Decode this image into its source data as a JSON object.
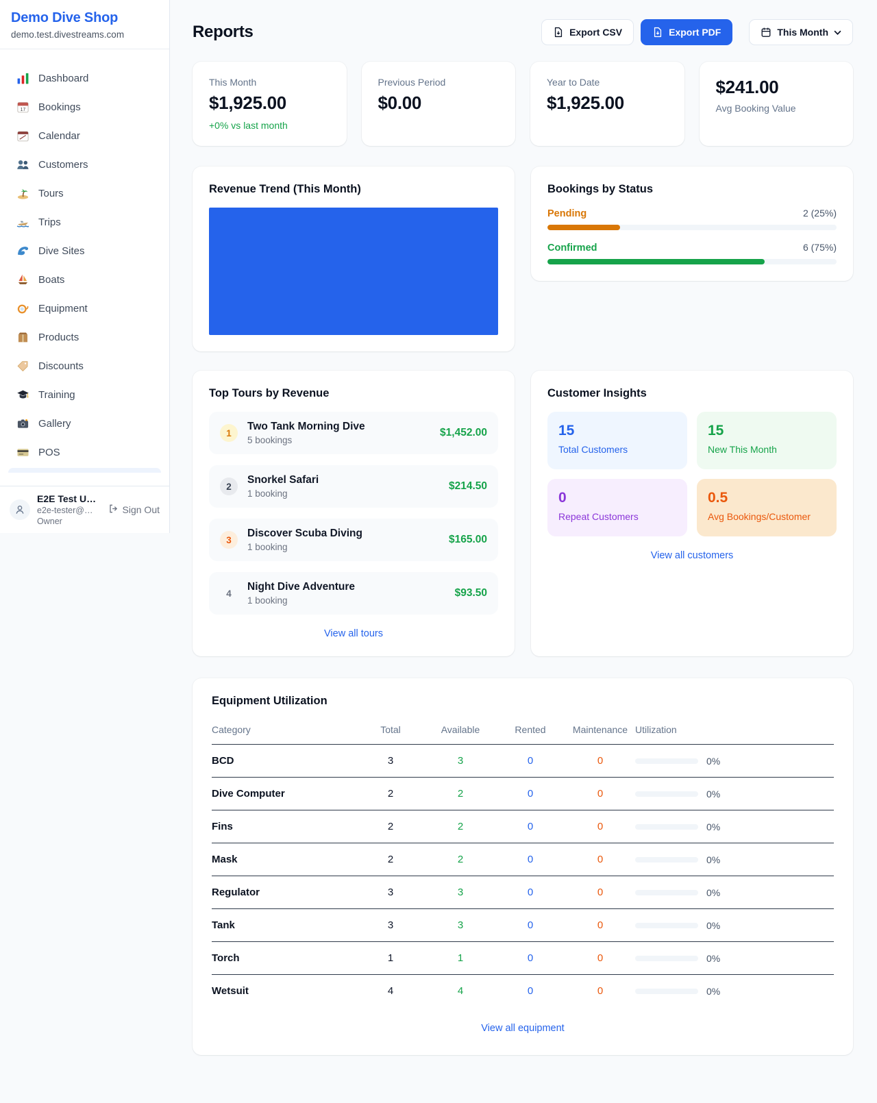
{
  "colors": {
    "accent_blue": "#2563eb",
    "positive_green": "#16a34a",
    "pending_orange": "#d97706",
    "maintenance_orange": "#ea580c",
    "repeat_purple": "#8b36d9",
    "trend_fill": "#2563eb"
  },
  "sidebar": {
    "shop_name": "Demo Dive Shop",
    "shop_domain": "demo.test.divestreams.com",
    "items": [
      {
        "icon": "bar-chart-icon",
        "label": "Dashboard"
      },
      {
        "icon": "calendar-17-icon",
        "label": "Bookings"
      },
      {
        "icon": "calendar-pad-icon",
        "label": "Calendar"
      },
      {
        "icon": "people-icon",
        "label": "Customers"
      },
      {
        "icon": "island-icon",
        "label": "Tours"
      },
      {
        "icon": "speedboat-icon",
        "label": "Trips"
      },
      {
        "icon": "wave-icon",
        "label": "Dive Sites"
      },
      {
        "icon": "sailboat-icon",
        "label": "Boats"
      },
      {
        "icon": "dive-mask-icon",
        "label": "Equipment"
      },
      {
        "icon": "package-icon",
        "label": "Products"
      },
      {
        "icon": "tag-icon",
        "label": "Discounts"
      },
      {
        "icon": "grad-cap-icon",
        "label": "Training"
      },
      {
        "icon": "camera-icon",
        "label": "Gallery"
      },
      {
        "icon": "credit-card-icon",
        "label": "POS"
      }
    ],
    "user": {
      "name": "E2E Test U…",
      "email": "e2e-tester@…",
      "role": "Owner",
      "sign_out_label": "Sign Out"
    }
  },
  "header": {
    "title": "Reports",
    "export_csv_label": "Export CSV",
    "export_pdf_label": "Export PDF",
    "period_label": "This Month"
  },
  "stats": [
    {
      "label": "This Month",
      "value": "$1,925.00",
      "delta": "+0% vs last month"
    },
    {
      "label": "Previous Period",
      "value": "$0.00"
    },
    {
      "label": "Year to Date",
      "value": "$1,925.00"
    },
    {
      "label": "Avg Booking Value",
      "value": "$241.00"
    }
  ],
  "revenue_trend": {
    "title": "Revenue Trend (This Month)"
  },
  "bookings_by_status": {
    "title": "Bookings by Status",
    "rows": [
      {
        "label": "Pending",
        "count": "2 (25%)",
        "pct": 25
      },
      {
        "label": "Confirmed",
        "count": "6 (75%)",
        "pct": 75
      }
    ]
  },
  "top_tours": {
    "title": "Top Tours by Revenue",
    "rows": [
      {
        "rank": "1",
        "name": "Two Tank Morning Dive",
        "bookings": "5 bookings",
        "revenue": "$1,452.00"
      },
      {
        "rank": "2",
        "name": "Snorkel Safari",
        "bookings": "1 booking",
        "revenue": "$214.50"
      },
      {
        "rank": "3",
        "name": "Discover Scuba Diving",
        "bookings": "1 booking",
        "revenue": "$165.00"
      },
      {
        "rank": "4",
        "name": "Night Dive Adventure",
        "bookings": "1 booking",
        "revenue": "$93.50"
      }
    ],
    "view_all_label": "View all tours"
  },
  "customer_insights": {
    "title": "Customer Insights",
    "tiles": [
      {
        "value": "15",
        "label": "Total Customers"
      },
      {
        "value": "15",
        "label": "New This Month"
      },
      {
        "value": "0",
        "label": "Repeat Customers"
      },
      {
        "value": "0.5",
        "label": "Avg Bookings/Customer"
      }
    ],
    "view_all_label": "View all customers"
  },
  "equipment": {
    "title": "Equipment Utilization",
    "columns": [
      "Category",
      "Total",
      "Available",
      "Rented",
      "Maintenance",
      "Utilization"
    ],
    "rows": [
      {
        "category": "BCD",
        "total": "3",
        "available": "3",
        "rented": "0",
        "maintenance": "0",
        "utilization": "0%",
        "utilization_pct": 0
      },
      {
        "category": "Dive Computer",
        "total": "2",
        "available": "2",
        "rented": "0",
        "maintenance": "0",
        "utilization": "0%",
        "utilization_pct": 0
      },
      {
        "category": "Fins",
        "total": "2",
        "available": "2",
        "rented": "0",
        "maintenance": "0",
        "utilization": "0%",
        "utilization_pct": 0
      },
      {
        "category": "Mask",
        "total": "2",
        "available": "2",
        "rented": "0",
        "maintenance": "0",
        "utilization": "0%",
        "utilization_pct": 0
      },
      {
        "category": "Regulator",
        "total": "3",
        "available": "3",
        "rented": "0",
        "maintenance": "0",
        "utilization": "0%",
        "utilization_pct": 0
      },
      {
        "category": "Tank",
        "total": "3",
        "available": "3",
        "rented": "0",
        "maintenance": "0",
        "utilization": "0%",
        "utilization_pct": 0
      },
      {
        "category": "Torch",
        "total": "1",
        "available": "1",
        "rented": "0",
        "maintenance": "0",
        "utilization": "0%",
        "utilization_pct": 0
      },
      {
        "category": "Wetsuit",
        "total": "4",
        "available": "4",
        "rented": "0",
        "maintenance": "0",
        "utilization": "0%",
        "utilization_pct": 0
      }
    ],
    "view_all_label": "View all equipment"
  },
  "chart_data": [
    {
      "type": "area",
      "title": "Revenue Trend (This Month)",
      "note": "rendered as a solid filled rectangle spanning the full plot area",
      "fill_color": "#2563eb"
    },
    {
      "type": "bar",
      "title": "Bookings by Status",
      "categories": [
        "Pending",
        "Confirmed"
      ],
      "values": [
        2,
        6
      ],
      "percentages": [
        25,
        75
      ],
      "bar_colors": [
        "#d97706",
        "#16a34a"
      ],
      "orientation": "horizontal"
    }
  ]
}
